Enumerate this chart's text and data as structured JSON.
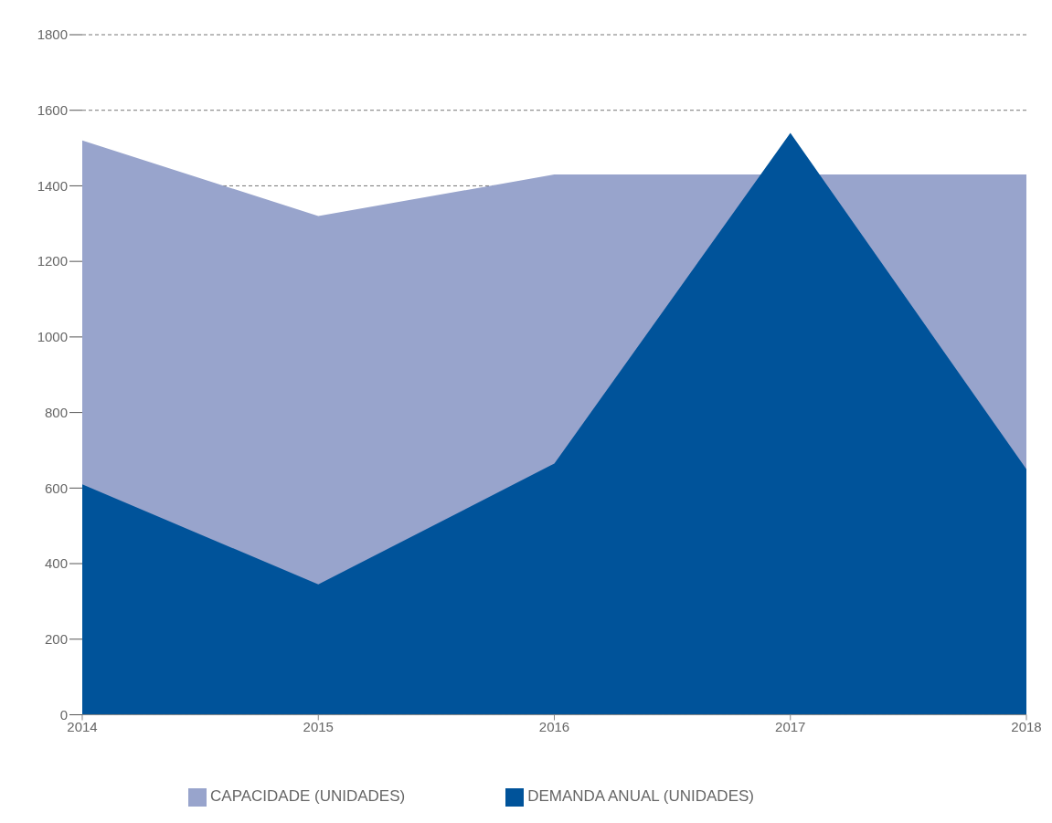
{
  "chart_data": {
    "type": "area",
    "categories": [
      "2014",
      "2015",
      "2016",
      "2017",
      "2018"
    ],
    "series": [
      {
        "name": "CAPACIDADE (UNIDADES)",
        "color": "#98a4cc",
        "values": [
          1520,
          1320,
          1430,
          null,
          1430
        ]
      },
      {
        "name": "DEMANDA ANUAL (UNIDADES)",
        "color": "#00539a",
        "values": [
          610,
          345,
          665,
          1540,
          650
        ]
      }
    ],
    "ylim": [
      0,
      1800
    ],
    "yticks": [
      0,
      200,
      400,
      600,
      800,
      1000,
      1200,
      1400,
      1600,
      1800
    ],
    "grid": "y",
    "legend": "bottom"
  }
}
